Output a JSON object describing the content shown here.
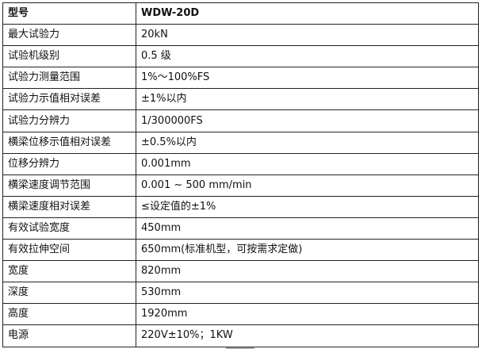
{
  "table": {
    "rows": [
      {
        "label": "型号",
        "value": "WDW-20D"
      },
      {
        "label": "最大试验力",
        "value": "20kN"
      },
      {
        "label": "试验机级别",
        "value": "0.5 级"
      },
      {
        "label": "试验力测量范围",
        "value": "1%～100%FS"
      },
      {
        "label": "试验力示值相对误差",
        "value": "±1%以内"
      },
      {
        "label": "试验力分辨力",
        "value": "1/300000FS"
      },
      {
        "label": "横梁位移示值相对误差",
        "value": "±0.5%以内"
      },
      {
        "label": "位移分辨力",
        "value": "0.001mm"
      },
      {
        "label": "横梁速度调节范围",
        "value": "0.001 ~ 500 mm/min"
      },
      {
        "label": "横梁速度相对误差",
        "value": "≤设定值的±1%"
      },
      {
        "label": "有效试验宽度",
        "value": "450mm"
      },
      {
        "label": "有效拉伸空间",
        "value": "650mm(标准机型，可按需求定做)"
      },
      {
        "label": "宽度",
        "value": "820mm"
      },
      {
        "label": "深度",
        "value": "530mm"
      },
      {
        "label": "高度",
        "value": "1920mm"
      },
      {
        "label": "电源",
        "value": "220V±10%；1KW"
      }
    ]
  }
}
